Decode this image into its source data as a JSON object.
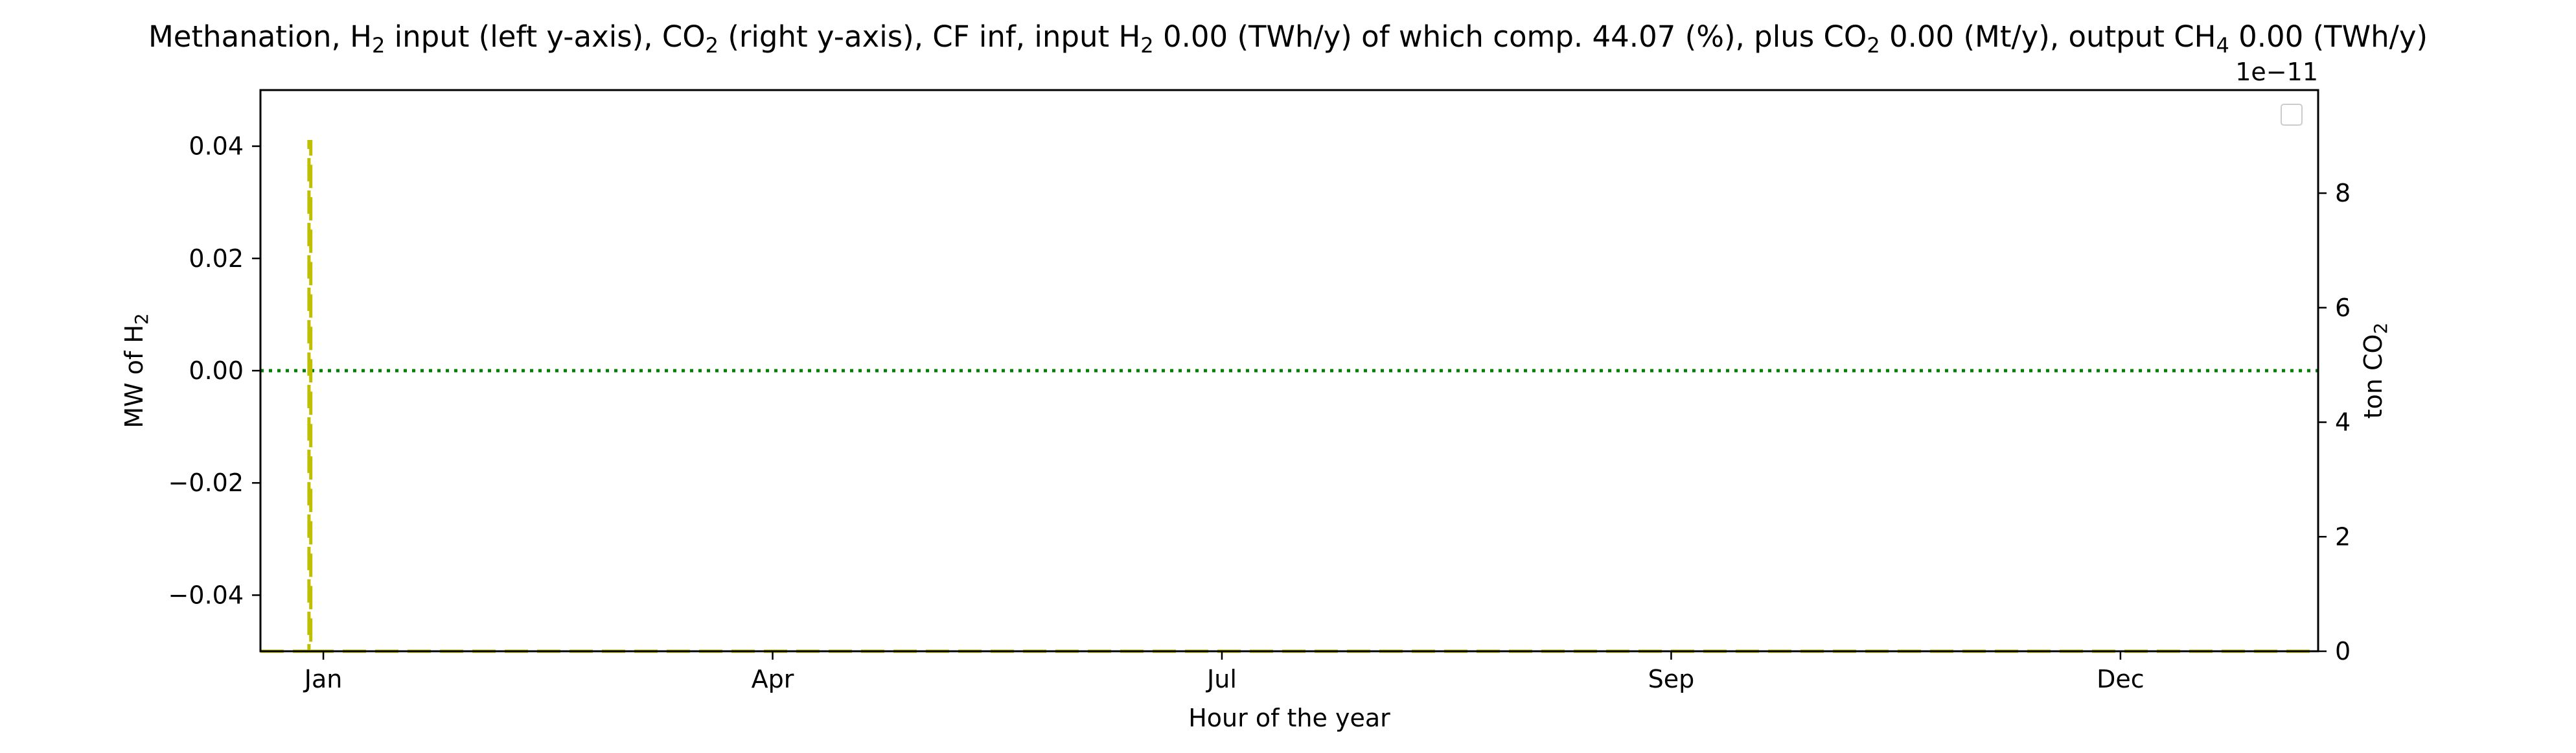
{
  "chart_data": {
    "type": "line",
    "title": {
      "p1": "Methanation, H",
      "sub1": "2",
      "p2": " input (left y-axis), CO",
      "sub2": "2",
      "p3": " (right y-axis), CF inf, input H",
      "sub3": "2",
      "p4": " 0.00 (TWh/y) of which comp. 44.07 (%), plus CO",
      "sub4": "2",
      "p5": " 0.00 (Mt/y), output CH",
      "sub5": "4",
      "p6": " 0.00 (TWh/y)"
    },
    "xlabel": "Hour of the year",
    "ylabel_left": {
      "text": "MW of H",
      "sub": "2"
    },
    "ylabel_right": {
      "text": "ton CO",
      "sub": "2"
    },
    "right_offset_text": "1e−11",
    "x_range": [
      -280,
      8880
    ],
    "x_ticks": [
      {
        "x": 0,
        "label": "Jan"
      },
      {
        "x": 2000,
        "label": "Apr"
      },
      {
        "x": 4000,
        "label": "Jul"
      },
      {
        "x": 6000,
        "label": "Sep"
      },
      {
        "x": 8000,
        "label": "Dec"
      }
    ],
    "y_left_range": [
      -0.05,
      0.05
    ],
    "y_left_ticks": [
      {
        "v": 0.04,
        "label": "0.04"
      },
      {
        "v": 0.02,
        "label": "0.02"
      },
      {
        "v": 0.0,
        "label": "0.00"
      },
      {
        "v": -0.02,
        "label": "−0.02"
      },
      {
        "v": -0.04,
        "label": "−0.04"
      }
    ],
    "y_right_range": [
      0,
      9.8
    ],
    "y_right_ticks": [
      {
        "v": 0,
        "label": "0"
      },
      {
        "v": 2,
        "label": "2"
      },
      {
        "v": 4,
        "label": "4"
      },
      {
        "v": 6,
        "label": "6"
      },
      {
        "v": 8,
        "label": "8"
      }
    ],
    "series": [
      {
        "axis": "left",
        "style": "dotted",
        "color": "#008000",
        "x": [
          -280,
          8880
        ],
        "y": [
          0.0,
          0.0
        ]
      },
      {
        "axis": "right",
        "style": "dashed",
        "color": "#bfbf00",
        "x": [
          -280,
          -64,
          -64,
          -56,
          -56,
          8880
        ],
        "y": [
          0,
          0,
          8.9,
          8.9,
          0,
          0
        ]
      }
    ],
    "legend": {
      "position": "upper-right",
      "entries": []
    },
    "grid": false
  }
}
